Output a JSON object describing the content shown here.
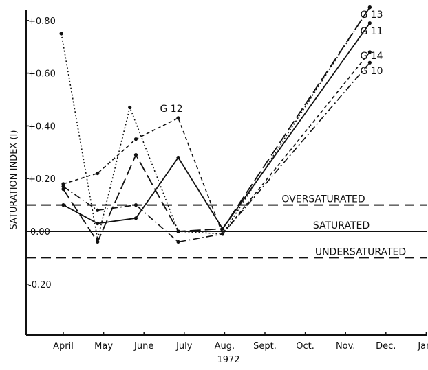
{
  "chart_data": {
    "type": "line",
    "ylabel": "SATURATION INDEX (I)",
    "xlabel": "1972",
    "x_categories": [
      "April",
      "May",
      "June",
      "July",
      "Aug.",
      "Sept.",
      "Oct.",
      "Nov.",
      "Dec.",
      "Jan."
    ],
    "y_ticks": [
      "+0.80",
      "+0.60",
      "+0.40",
      "+0.20",
      "0.00",
      "-0.20"
    ],
    "y_tick_values": [
      0.8,
      0.6,
      0.4,
      0.2,
      0.0,
      -0.2
    ],
    "ylim": [
      -0.4,
      0.85
    ],
    "reference_lines": [
      {
        "value": 0.1,
        "label": "OVERSATURATED",
        "style": "dashed"
      },
      {
        "value": 0.0,
        "label": "SATURATED",
        "style": "solid"
      },
      {
        "value": -0.1,
        "label": "UNDERSATURATED",
        "style": "dashed"
      }
    ],
    "series": [
      {
        "name": "G 10",
        "style": "dash-dot",
        "x": [
          4.0,
          4.85,
          5.8,
          6.85,
          7.95,
          11.6
        ],
        "y": [
          0.17,
          0.08,
          0.1,
          -0.04,
          -0.01,
          0.64
        ]
      },
      {
        "name": "G 11",
        "style": "solid",
        "x": [
          4.0,
          4.85,
          5.8,
          6.85,
          7.95,
          11.6
        ],
        "y": [
          0.1,
          0.03,
          0.05,
          0.28,
          0.01,
          0.79
        ]
      },
      {
        "name": "G 12",
        "style": "dotted",
        "x": [
          3.95,
          4.85,
          5.65,
          6.85,
          7.95,
          11.6
        ],
        "y": [
          0.75,
          -0.03,
          0.47,
          0.0,
          -0.01,
          0.85
        ]
      },
      {
        "name": "G 13",
        "style": "long-dash",
        "x": [
          4.0,
          4.85,
          5.8,
          6.85,
          7.95,
          11.6
        ],
        "y": [
          0.16,
          -0.04,
          0.29,
          0.0,
          0.01,
          0.85
        ]
      },
      {
        "name": "G 14",
        "style": "short-dash",
        "x": [
          4.0,
          4.85,
          5.8,
          6.85,
          7.95,
          11.6
        ],
        "y": [
          0.18,
          0.22,
          0.35,
          0.43,
          -0.01,
          0.68
        ]
      }
    ]
  }
}
